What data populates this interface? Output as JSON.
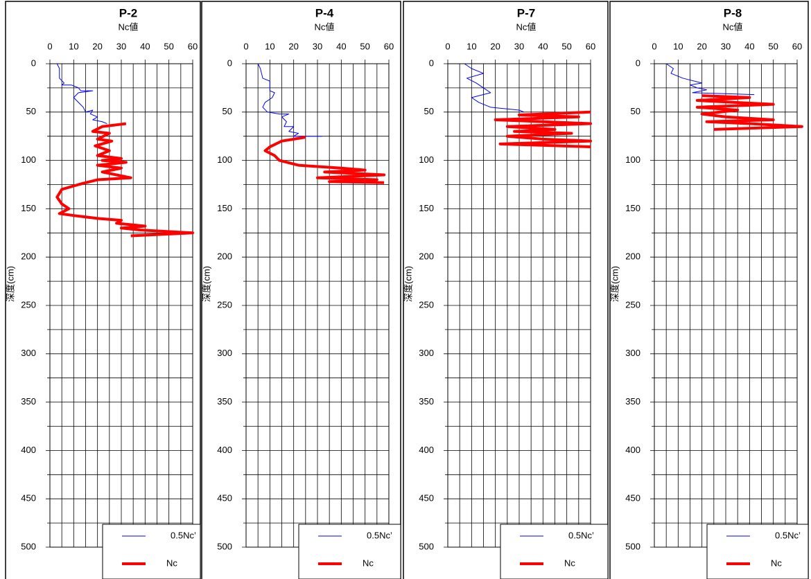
{
  "chart_data": [
    {
      "type": "line",
      "title": "P-2",
      "xlabel": "Nc値",
      "ylabel": "深度(cm)",
      "xlim": [
        0,
        60
      ],
      "ylim": [
        0,
        500
      ],
      "y_inverted": true,
      "xticks": [
        0,
        10,
        20,
        30,
        40,
        50,
        60
      ],
      "yticks": [
        0,
        50,
        100,
        150,
        200,
        250,
        300,
        350,
        400,
        450,
        500
      ],
      "xminorticks": [
        5,
        15,
        25,
        35,
        45,
        55
      ],
      "yminorticks": [
        25,
        75,
        125,
        175,
        225,
        275,
        325,
        375,
        425,
        475
      ],
      "grid": true,
      "legend": "lower right",
      "series": [
        {
          "name": "0.5Nc’",
          "color": "#0000ff",
          "line_width": 1,
          "x": [
            3,
            4,
            4,
            6,
            5,
            9,
            12,
            13,
            18,
            12,
            10,
            12,
            14,
            15,
            18,
            17,
            20,
            18,
            22,
            24
          ],
          "y": [
            0,
            5,
            15,
            20,
            22,
            22,
            25,
            28,
            28,
            30,
            35,
            40,
            45,
            50,
            48,
            52,
            55,
            58,
            60,
            62
          ]
        },
        {
          "name": "Nc",
          "color": "#ff0000",
          "line_width": 4,
          "x": [
            32,
            22,
            18,
            25,
            20,
            26,
            19,
            25,
            20,
            30,
            22,
            32,
            20,
            30,
            22,
            34,
            20,
            12,
            5,
            3,
            5,
            8,
            4,
            10,
            20,
            30,
            28,
            40,
            30,
            38,
            60,
            34
          ],
          "y": [
            62,
            65,
            70,
            72,
            78,
            80,
            85,
            90,
            95,
            98,
            100,
            102,
            105,
            108,
            112,
            118,
            120,
            125,
            130,
            138,
            145,
            150,
            155,
            157,
            160,
            162,
            165,
            168,
            170,
            172,
            175,
            178
          ]
        }
      ]
    },
    {
      "type": "line",
      "title": "P-4",
      "xlabel": "Nc値",
      "ylabel": "深度(cm)",
      "xlim": [
        0,
        60
      ],
      "ylim": [
        0,
        500
      ],
      "y_inverted": true,
      "xticks": [
        0,
        10,
        20,
        30,
        40,
        50,
        60
      ],
      "yticks": [
        0,
        50,
        100,
        150,
        200,
        250,
        300,
        350,
        400,
        450,
        500
      ],
      "xminorticks": [
        5,
        15,
        25,
        35,
        45,
        55
      ],
      "yminorticks": [
        25,
        75,
        125,
        175,
        225,
        275,
        325,
        375,
        425,
        475
      ],
      "grid": true,
      "legend": "lower right",
      "series": [
        {
          "name": "0.5Nc’",
          "color": "#0000ff",
          "line_width": 1,
          "x": [
            5,
            6,
            7,
            10,
            10,
            12,
            11,
            8,
            7,
            9,
            14,
            18,
            15,
            17,
            16,
            20,
            18,
            22,
            20,
            32
          ],
          "y": [
            0,
            5,
            15,
            18,
            28,
            30,
            35,
            40,
            45,
            50,
            52,
            52,
            55,
            60,
            65,
            65,
            70,
            72,
            75,
            75
          ]
        },
        {
          "name": "Nc",
          "color": "#ff0000",
          "line_width": 4,
          "x": [
            25,
            15,
            10,
            8,
            12,
            14,
            22,
            40,
            50,
            33,
            58,
            30,
            55,
            35,
            58
          ],
          "y": [
            76,
            80,
            86,
            90,
            95,
            100,
            105,
            108,
            110,
            112,
            115,
            118,
            120,
            122,
            123
          ]
        }
      ]
    },
    {
      "type": "line",
      "title": "P-7",
      "xlabel": "Nc値",
      "ylabel": "深度(cm)",
      "xlim": [
        0,
        60
      ],
      "ylim": [
        0,
        500
      ],
      "y_inverted": true,
      "xticks": [
        0,
        10,
        20,
        30,
        40,
        50,
        60
      ],
      "yticks": [
        0,
        50,
        100,
        150,
        200,
        250,
        300,
        350,
        400,
        450,
        500
      ],
      "xminorticks": [
        5,
        15,
        25,
        35,
        45,
        55
      ],
      "yminorticks": [
        25,
        75,
        125,
        175,
        225,
        275,
        325,
        375,
        425,
        475
      ],
      "grid": true,
      "legend": "lower right",
      "series": [
        {
          "name": "0.5Nc’",
          "color": "#0000ff",
          "line_width": 1,
          "x": [
            7,
            10,
            15,
            8,
            12,
            15,
            18,
            10,
            13,
            18,
            30,
            32
          ],
          "y": [
            0,
            5,
            10,
            15,
            20,
            25,
            30,
            35,
            40,
            45,
            48,
            50
          ]
        },
        {
          "name": "Nc",
          "color": "#ff0000",
          "line_width": 4,
          "x": [
            60,
            30,
            55,
            20,
            60,
            25,
            45,
            28,
            52,
            25,
            40,
            60,
            22,
            60
          ],
          "y": [
            50,
            53,
            55,
            58,
            62,
            65,
            68,
            70,
            72,
            75,
            78,
            80,
            83,
            86
          ]
        }
      ]
    },
    {
      "type": "line",
      "title": "P-8",
      "xlabel": "Nc値",
      "ylabel": "深度(cm)",
      "xlim": [
        0,
        60
      ],
      "ylim": [
        0,
        500
      ],
      "y_inverted": true,
      "xticks": [
        0,
        10,
        20,
        30,
        40,
        50,
        60
      ],
      "yticks": [
        0,
        50,
        100,
        150,
        200,
        250,
        300,
        350,
        400,
        450,
        500
      ],
      "xminorticks": [
        5,
        15,
        25,
        35,
        45,
        55
      ],
      "yminorticks": [
        25,
        75,
        125,
        175,
        225,
        275,
        325,
        375,
        425,
        475
      ],
      "grid": true,
      "legend": "lower right",
      "series": [
        {
          "name": "0.5Nc’",
          "color": "#0000ff",
          "line_width": 1,
          "x": [
            5,
            8,
            7,
            12,
            20,
            15,
            18,
            22,
            16,
            30,
            42
          ],
          "y": [
            0,
            5,
            10,
            15,
            20,
            22,
            25,
            27,
            30,
            31,
            32
          ]
        },
        {
          "name": "Nc",
          "color": "#ff0000",
          "line_width": 4,
          "x": [
            20,
            40,
            18,
            50,
            18,
            35,
            20,
            30,
            50,
            22,
            40,
            62,
            25
          ],
          "y": [
            33,
            35,
            38,
            42,
            45,
            48,
            52,
            55,
            58,
            60,
            62,
            65,
            68
          ]
        }
      ]
    }
  ]
}
